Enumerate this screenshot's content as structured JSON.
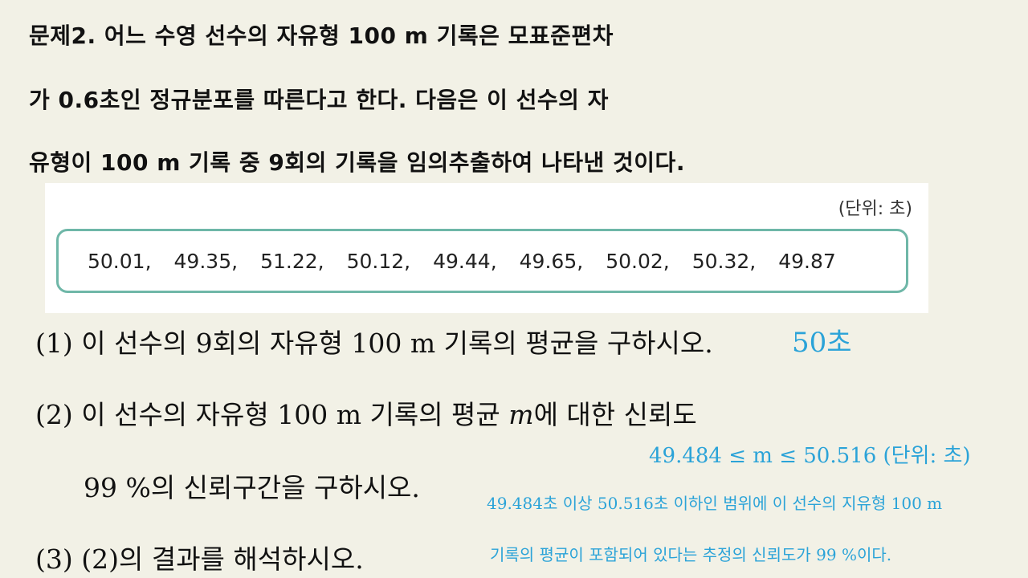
{
  "problem": {
    "line1": "문제2. 어느 수영 선수의 자유형 100 m 기록은 모표준편차",
    "line2": "가 0.6초인 정규분포를 따른다고 한다. 다음은 이 선수의 자",
    "line3": "유형이 100 m 기록 중 9회의 기록을 임의추출하여 나타낸 것이다."
  },
  "data_table": {
    "unit": "(단위: 초)",
    "values": [
      "50.01,",
      "49.35,",
      "51.22,",
      "50.12,",
      "49.44,",
      "49.65,",
      "50.02,",
      "50.32,",
      "49.87"
    ]
  },
  "questions": {
    "q1": "(1) 이 선수의 9회의 자유형 100 m 기록의 평균을 구하시오.",
    "q2_pre": "(2) 이 선수의 자유형 100 m 기록의 평균 ",
    "q2_var": "m",
    "q2_post": "에 대한 신뢰도",
    "q2_line2": "99 %의 신뢰구간을 구하시오.",
    "q3": "(3) (2)의 결과를 해석하시오."
  },
  "answers": {
    "a1": "50초",
    "a2": "49.484 ≤ m ≤ 50.516 (단위: 초)",
    "a3_line1": "49.484초 이상 50.516초 이하인 범위에 이 선수의 지유형 100 m",
    "a3_line2": "기록의 평균이 포함되어 있다는 추정의 신뢰도가 99 %이다."
  },
  "colors": {
    "background": "#f2f1e6",
    "answer": "#2ba3d8",
    "box_border": "#6fb7a8"
  }
}
